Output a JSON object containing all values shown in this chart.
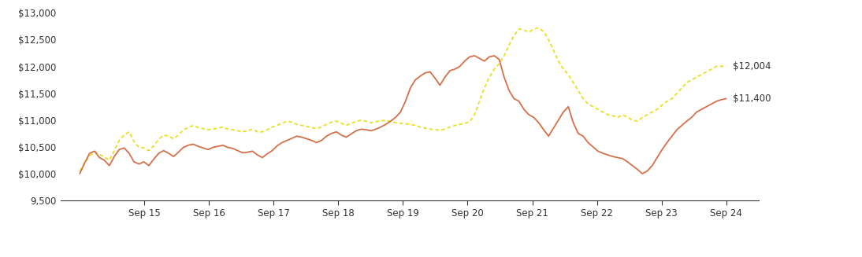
{
  "x_labels": [
    "Sep 15",
    "Sep 16",
    "Sep 17",
    "Sep 18",
    "Sep 19",
    "Sep 20",
    "Sep 21",
    "Sep 22",
    "Sep 23",
    "Sep 24"
  ],
  "ylim": [
    9500,
    13000
  ],
  "yticks": [
    9500,
    10000,
    10500,
    11000,
    11500,
    12000,
    12500,
    13000
  ],
  "end_label_orange": "$11,400",
  "end_label_yellow": "$12,004",
  "color_orange": "#D4704A",
  "color_yellow": "#E8E020",
  "investor_c": [
    10000,
    10200,
    10380,
    10420,
    10300,
    10250,
    10150,
    10320,
    10450,
    10480,
    10380,
    10220,
    10180,
    10220,
    10150,
    10270,
    10380,
    10430,
    10380,
    10320,
    10400,
    10490,
    10530,
    10550,
    10510,
    10480,
    10450,
    10490,
    10510,
    10530,
    10490,
    10470,
    10430,
    10390,
    10400,
    10420,
    10350,
    10300,
    10370,
    10430,
    10520,
    10580,
    10620,
    10660,
    10700,
    10680,
    10650,
    10620,
    10580,
    10620,
    10700,
    10750,
    10780,
    10720,
    10680,
    10740,
    10800,
    10830,
    10820,
    10800,
    10830,
    10870,
    10920,
    10980,
    11050,
    11150,
    11350,
    11600,
    11750,
    11820,
    11880,
    11900,
    11780,
    11650,
    11800,
    11920,
    11950,
    12000,
    12100,
    12180,
    12200,
    12150,
    12100,
    12180,
    12200,
    12130,
    11800,
    11550,
    11400,
    11350,
    11200,
    11100,
    11050,
    10950,
    10820,
    10700,
    10850,
    11000,
    11150,
    11250,
    10950,
    10750,
    10700,
    10580,
    10500,
    10420,
    10380,
    10350,
    10320,
    10300,
    10280,
    10220,
    10150,
    10080,
    10000,
    10050,
    10150,
    10300,
    10450,
    10580,
    10700,
    10820,
    10900,
    10980,
    11050,
    11150,
    11200,
    11250,
    11300,
    11350,
    11380,
    11400
  ],
  "bloomberg": [
    10050,
    10200,
    10330,
    10410,
    10360,
    10310,
    10250,
    10430,
    10620,
    10720,
    10780,
    10600,
    10490,
    10480,
    10430,
    10520,
    10640,
    10720,
    10700,
    10650,
    10720,
    10820,
    10860,
    10900,
    10860,
    10840,
    10820,
    10830,
    10850,
    10870,
    10830,
    10820,
    10800,
    10780,
    10800,
    10830,
    10780,
    10780,
    10820,
    10870,
    10900,
    10940,
    10980,
    10960,
    10920,
    10900,
    10880,
    10860,
    10840,
    10870,
    10920,
    10960,
    10980,
    10940,
    10900,
    10940,
    10970,
    11000,
    10980,
    10950,
    10970,
    10980,
    11000,
    10970,
    10950,
    10940,
    10930,
    10920,
    10900,
    10870,
    10850,
    10830,
    10820,
    10810,
    10830,
    10870,
    10900,
    10920,
    10940,
    10970,
    11100,
    11350,
    11600,
    11800,
    11950,
    12050,
    12200,
    12400,
    12580,
    12700,
    12680,
    12640,
    12700,
    12720,
    12650,
    12500,
    12300,
    12100,
    11950,
    11850,
    11700,
    11550,
    11400,
    11300,
    11250,
    11200,
    11150,
    11100,
    11080,
    11050,
    11100,
    11050,
    11000,
    10980,
    11050,
    11100,
    11150,
    11200,
    11280,
    11350,
    11400,
    11500,
    11600,
    11700,
    11750,
    11800,
    11850,
    11900,
    11950,
    12000,
    12004,
    12004
  ]
}
